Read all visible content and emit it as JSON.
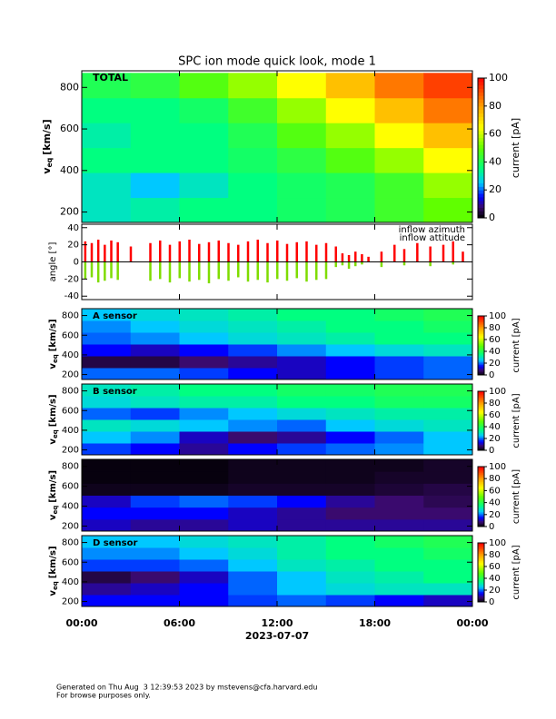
{
  "title": "SPC ion mode quick look, mode 1",
  "footer": [
    "Generated on Thu Aug  3 12:39:53 2023 by mstevens@cfa.harvard.edu",
    "For browse purposes only."
  ],
  "chart_data": [
    {
      "type": "heatmap",
      "title": "TOTAL",
      "colormap": "rainbow",
      "x": [
        1.5,
        4.5,
        7.5,
        10.5,
        13.5,
        16.5,
        19.5,
        22.5
      ],
      "y": [
        210,
        330,
        450,
        570,
        690,
        810
      ],
      "z": [
        [
          30,
          32,
          35,
          35,
          38,
          40,
          45,
          50
        ],
        [
          30,
          25,
          30,
          35,
          38,
          40,
          45,
          55
        ],
        [
          35,
          35,
          35,
          38,
          42,
          48,
          55,
          65
        ],
        [
          32,
          35,
          35,
          40,
          48,
          55,
          65,
          75
        ],
        [
          35,
          35,
          38,
          45,
          55,
          65,
          75,
          85
        ],
        [
          40,
          42,
          48,
          55,
          65,
          75,
          85,
          92
        ]
      ],
      "xlim": [
        0,
        24
      ],
      "ylim": [
        150,
        880
      ],
      "yticks": [
        200,
        400,
        600,
        800
      ],
      "ylabel": {
        "symbol": "v",
        "subscript": "eq",
        "unit": "[km/s]"
      },
      "zlim": [
        0,
        100
      ],
      "zticks": [
        0,
        20,
        40,
        60,
        80,
        100
      ],
      "zlabel": "current [pA]"
    },
    {
      "type": "bar",
      "xlim": [
        0,
        24
      ],
      "ylim": [
        -44,
        44
      ],
      "yticks": [
        -40,
        -20,
        0,
        20,
        40
      ],
      "ylabel": "angle [°]",
      "x": [
        0.2,
        0.6,
        1.0,
        1.4,
        1.8,
        2.2,
        3.0,
        4.2,
        4.8,
        5.4,
        6.0,
        6.6,
        7.2,
        7.8,
        8.4,
        9.0,
        9.6,
        10.2,
        10.8,
        11.4,
        12.0,
        12.6,
        13.2,
        13.8,
        14.4,
        15.0,
        15.6,
        16.0,
        16.4,
        16.8,
        17.2,
        17.6,
        18.4,
        19.2,
        19.8,
        20.6,
        21.4,
        22.2,
        22.8,
        23.4
      ],
      "series": [
        {
          "name": "inflow azimuth",
          "color": "#ff0000",
          "values": [
            24,
            22,
            26,
            20,
            25,
            23,
            18,
            22,
            25,
            20,
            24,
            26,
            21,
            23,
            25,
            22,
            20,
            24,
            26,
            22,
            25,
            21,
            23,
            24,
            20,
            22,
            18,
            10,
            8,
            12,
            9,
            6,
            12,
            20,
            15,
            22,
            18,
            20,
            24,
            12
          ]
        },
        {
          "name": "inflow attitude",
          "color": "#7fdc00",
          "values": [
            -20,
            -18,
            -24,
            -22,
            -19,
            -21,
            null,
            -22,
            -20,
            -24,
            -19,
            -23,
            -21,
            -25,
            -20,
            -22,
            -18,
            -23,
            -21,
            -24,
            -20,
            -22,
            -19,
            -23,
            -21,
            -20,
            -6,
            -4,
            -8,
            -5,
            -3,
            null,
            -6,
            null,
            -4,
            null,
            -5,
            null,
            -3,
            null
          ]
        }
      ]
    },
    {
      "type": "heatmap",
      "title": "A sensor",
      "colormap": "rainbow",
      "x": [
        1.5,
        4.5,
        7.5,
        10.5,
        13.5,
        16.5,
        19.5,
        22.5
      ],
      "y": [
        210,
        330,
        450,
        570,
        690,
        810
      ],
      "z": [
        [
          20,
          20,
          18,
          15,
          12,
          15,
          18,
          20
        ],
        [
          5,
          5,
          8,
          10,
          12,
          15,
          18,
          20
        ],
        [
          15,
          12,
          15,
          18,
          22,
          25,
          28,
          30
        ],
        [
          20,
          22,
          25,
          28,
          30,
          32,
          35,
          35
        ],
        [
          22,
          25,
          28,
          30,
          32,
          35,
          35,
          38
        ],
        [
          25,
          28,
          30,
          32,
          35,
          35,
          38,
          40
        ]
      ],
      "xlim": [
        0,
        24
      ],
      "ylim": [
        150,
        870
      ],
      "yticks": [
        200,
        400,
        600,
        800
      ],
      "ylabel": {
        "symbol": "v",
        "subscript": "eq",
        "unit": "[km/s]"
      },
      "zlim": [
        0,
        100
      ],
      "zticks": [
        0,
        20,
        40,
        60,
        80,
        100
      ],
      "zlabel": "current [pA]"
    },
    {
      "type": "heatmap",
      "title": "B sensor",
      "colormap": "rainbow",
      "x": [
        1.5,
        4.5,
        7.5,
        10.5,
        13.5,
        16.5,
        19.5,
        22.5
      ],
      "y": [
        210,
        330,
        450,
        570,
        690,
        810
      ],
      "z": [
        [
          18,
          15,
          10,
          15,
          18,
          20,
          22,
          25
        ],
        [
          25,
          22,
          12,
          8,
          10,
          15,
          20,
          25
        ],
        [
          30,
          28,
          25,
          22,
          20,
          25,
          28,
          30
        ],
        [
          20,
          18,
          22,
          25,
          28,
          30,
          32,
          32
        ],
        [
          28,
          30,
          32,
          32,
          35,
          35,
          38,
          38
        ],
        [
          30,
          32,
          35,
          35,
          38,
          38,
          40,
          40
        ]
      ],
      "xlim": [
        0,
        24
      ],
      "ylim": [
        150,
        870
      ],
      "yticks": [
        200,
        400,
        600,
        800
      ],
      "ylabel": {
        "symbol": "v",
        "subscript": "eq",
        "unit": "[km/s]"
      },
      "zlim": [
        0,
        100
      ],
      "zticks": [
        0,
        20,
        40,
        60,
        80,
        100
      ],
      "zlabel": "current [pA]"
    },
    {
      "type": "heatmap",
      "colormap": "rainbow",
      "x": [
        1.5,
        4.5,
        7.5,
        10.5,
        13.5,
        16.5,
        19.5,
        22.5
      ],
      "y": [
        210,
        330,
        450,
        570,
        690,
        810
      ],
      "z": [
        [
          12,
          10,
          10,
          12,
          10,
          10,
          10,
          10
        ],
        [
          15,
          15,
          15,
          12,
          10,
          8,
          8,
          8
        ],
        [
          12,
          18,
          20,
          18,
          15,
          10,
          8,
          6
        ],
        [
          2,
          2,
          2,
          3,
          3,
          3,
          4,
          5
        ],
        [
          1,
          1,
          1,
          2,
          2,
          2,
          3,
          3
        ],
        [
          1,
          1,
          1,
          2,
          2,
          2,
          2,
          3
        ]
      ],
      "xlim": [
        0,
        24
      ],
      "ylim": [
        150,
        870
      ],
      "yticks": [
        200,
        400,
        600,
        800
      ],
      "ylabel": {
        "symbol": "v",
        "subscript": "eq",
        "unit": "[km/s]"
      },
      "zlim": [
        0,
        100
      ],
      "zticks": [
        0,
        20,
        40,
        60,
        80,
        100
      ],
      "zlabel": "current [pA]"
    },
    {
      "type": "heatmap",
      "title": "D sensor",
      "colormap": "rainbow",
      "x": [
        1.5,
        4.5,
        7.5,
        10.5,
        13.5,
        16.5,
        19.5,
        22.5
      ],
      "y": [
        210,
        330,
        450,
        570,
        690,
        810
      ],
      "z": [
        [
          15,
          15,
          15,
          18,
          20,
          18,
          15,
          12
        ],
        [
          10,
          12,
          15,
          20,
          25,
          28,
          30,
          30
        ],
        [
          5,
          8,
          12,
          20,
          25,
          30,
          32,
          35
        ],
        [
          18,
          18,
          20,
          25,
          30,
          32,
          35,
          35
        ],
        [
          22,
          22,
          25,
          28,
          32,
          35,
          35,
          38
        ],
        [
          25,
          25,
          28,
          30,
          32,
          35,
          38,
          40
        ]
      ],
      "xlim": [
        0,
        24
      ],
      "ylim": [
        150,
        870
      ],
      "yticks": [
        200,
        400,
        600,
        800
      ],
      "ylabel": {
        "symbol": "v",
        "subscript": "eq",
        "unit": "[km/s]"
      },
      "zlim": [
        0,
        100
      ],
      "zticks": [
        0,
        20,
        40,
        60,
        80,
        100
      ],
      "zlabel": "current [pA]",
      "xticks": [
        {
          "value": 0,
          "label": "00:00"
        },
        {
          "value": 6,
          "label": "06:00"
        },
        {
          "value": 12,
          "label": "12:00"
        },
        {
          "value": 18,
          "label": "18:00"
        },
        {
          "value": 24,
          "label": "00:00"
        }
      ],
      "xlabel": "2023-07-07"
    }
  ]
}
